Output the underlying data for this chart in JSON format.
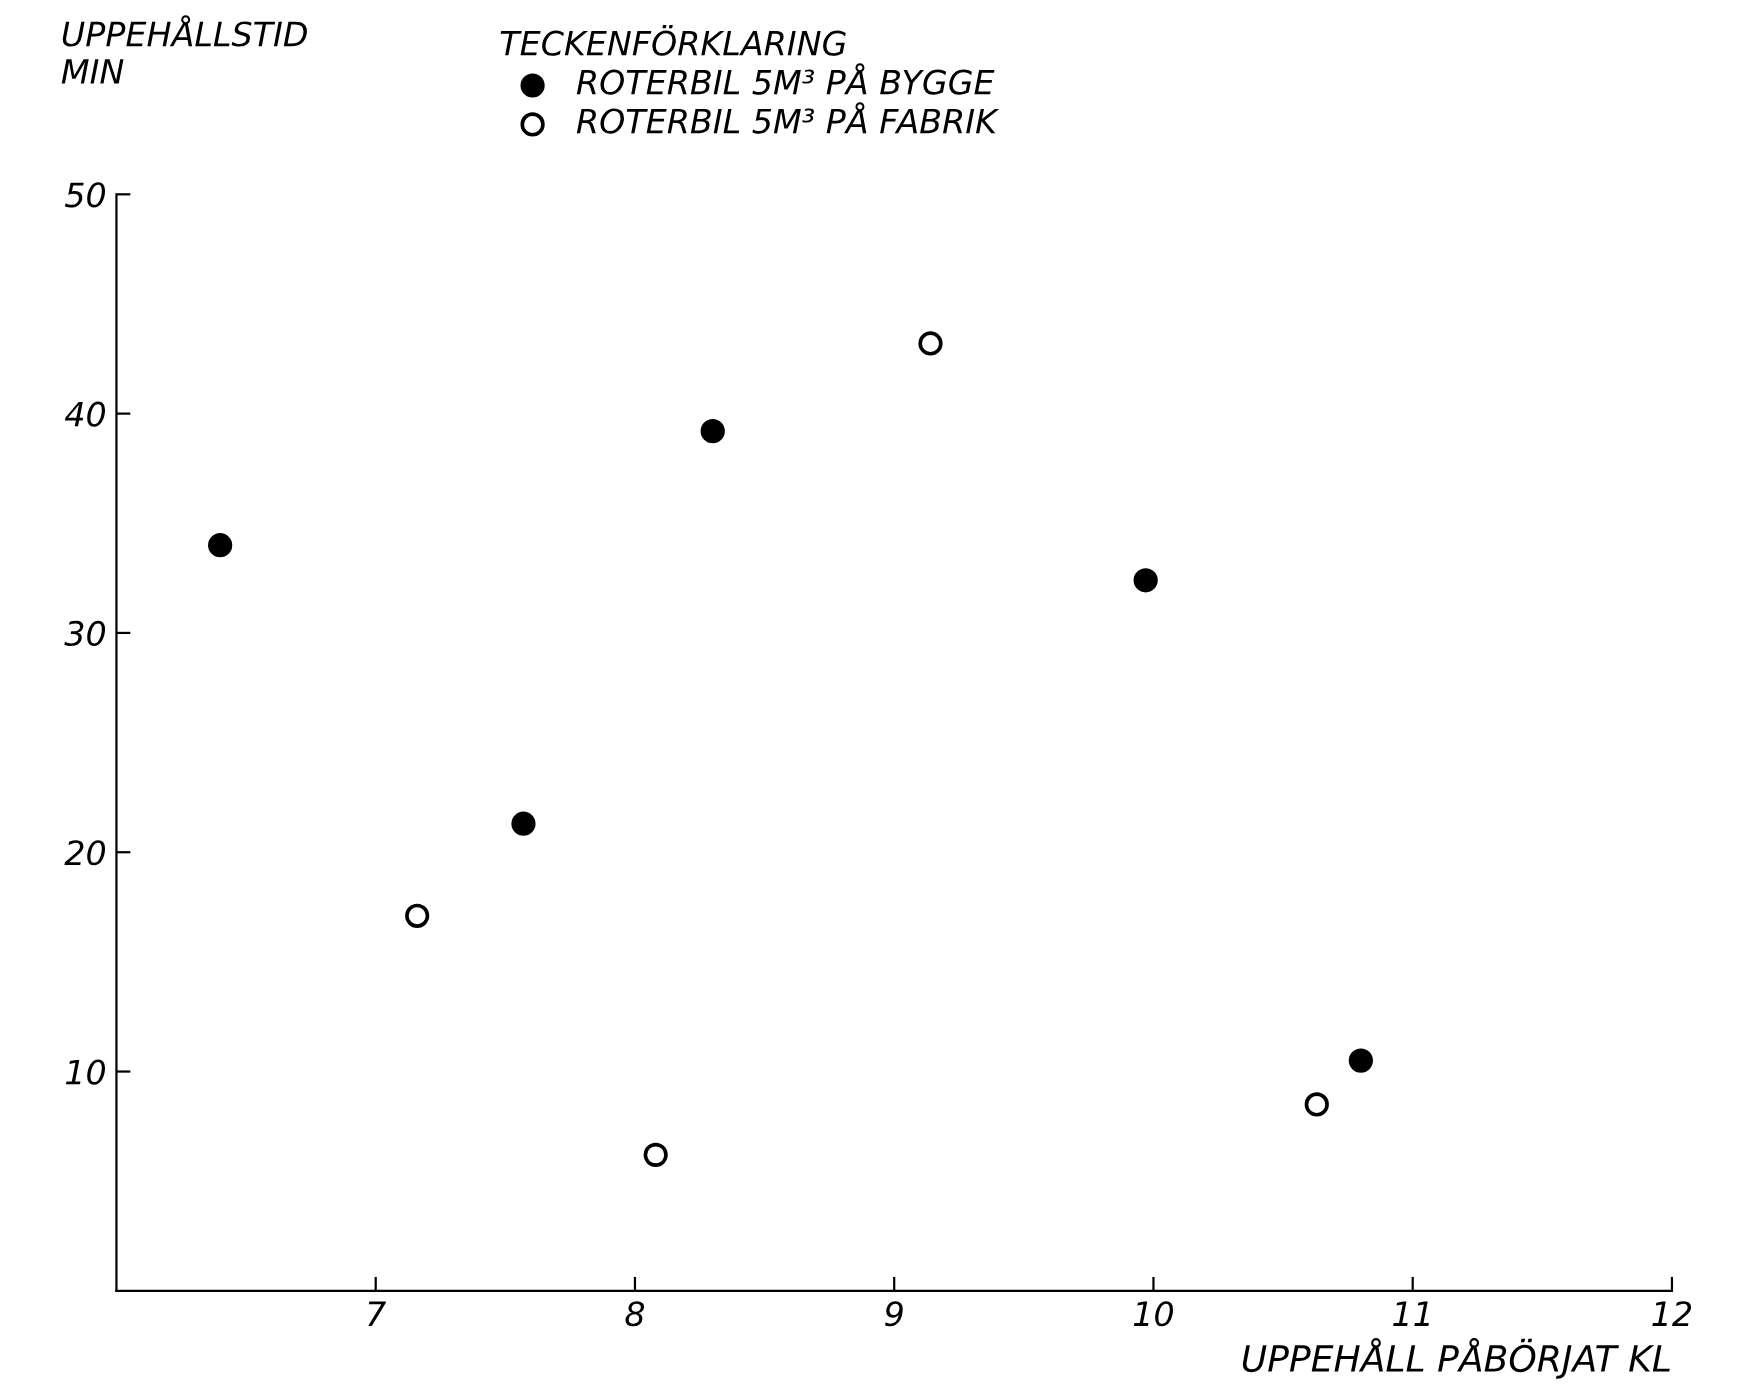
{
  "chart_data": {
    "type": "scatter",
    "xlabel": "UPPEHÅLL PÅBÖRJAT KL",
    "ylabel": "UPPEHÅLLSTID\nMIN",
    "legend_title": "TECKENFÖRKLARING",
    "series": [
      {
        "name": "ROTERBIL 5M³ PÅ BYGGE",
        "color": "#000000",
        "x": [
          6.4,
          7.57,
          8.3,
          9.97,
          10.8
        ],
        "values": [
          34,
          21.3,
          39.2,
          32.4,
          10.5
        ]
      },
      {
        "name": "ROTERBIL 5M³ PÅ FABRIK",
        "color": "#ffffff",
        "x": [
          7.16,
          8.08,
          9.14,
          10.63
        ],
        "values": [
          17.1,
          6.2,
          43.2,
          8.5
        ]
      }
    ],
    "xlim": [
      6,
      12
    ],
    "xticks": [
      7,
      8,
      9,
      10,
      11,
      12
    ],
    "ylim": [
      0,
      50
    ],
    "yticks": [
      10,
      20,
      30,
      40,
      50
    ],
    "marker": "circle",
    "grid": false,
    "legend": "top left"
  }
}
